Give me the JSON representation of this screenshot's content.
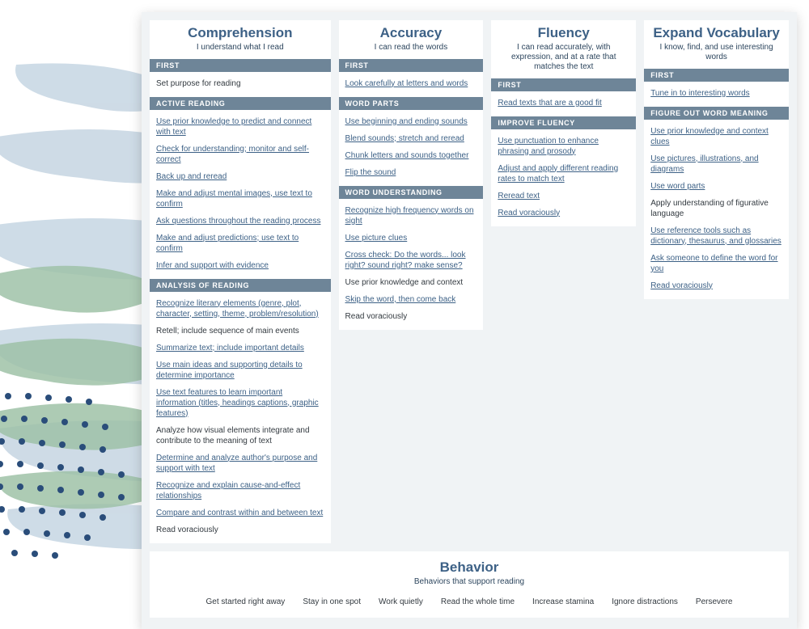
{
  "colors": {
    "panel_bg": "#f0f3f5",
    "card_bg": "#ffffff",
    "title": "#3d6186",
    "section_bg": "#6e8598",
    "link": "#3d6186",
    "plain_text": "#333a40",
    "brush_blue": "#c9d8e4",
    "brush_green": "#9fc2a8",
    "dot_blue": "#2a4d7a"
  },
  "columns": [
    {
      "title": "Comprehension",
      "subtitle": "I understand what I read",
      "sections": [
        {
          "name": "FIRST",
          "items": [
            {
              "text": "Set purpose for reading",
              "link": false
            }
          ]
        },
        {
          "name": "ACTIVE READING",
          "items": [
            {
              "text": "Use prior knowledge to predict and connect with text",
              "link": true
            },
            {
              "text": "Check for understanding; monitor and self-correct",
              "link": true
            },
            {
              "text": "Back up and reread",
              "link": true
            },
            {
              "text": "Make and adjust mental images, use text to confirm",
              "link": true
            },
            {
              "text": "Ask questions throughout the reading process",
              "link": true
            },
            {
              "text": "Make and adjust predictions; use text to confirm",
              "link": true
            },
            {
              "text": "Infer and support with evidence",
              "link": true
            }
          ]
        },
        {
          "name": "ANALYSIS OF READING",
          "items": [
            {
              "text": "Recognize literary elements (genre, plot, character, setting, theme, problem/resolution)",
              "link": true
            },
            {
              "text": "Retell; include sequence of main events",
              "link": false
            },
            {
              "text": "Summarize text; include important details",
              "link": true
            },
            {
              "text": "Use main ideas and supporting details to determine importance",
              "link": true
            },
            {
              "text": "Use text features to learn important information (titles, headings captions, graphic features)",
              "link": true
            },
            {
              "text": "Analyze how visual elements integrate and contribute to the meaning of text",
              "link": false
            },
            {
              "text": "Determine and analyze author's purpose and support with text",
              "link": true
            },
            {
              "text": "Recognize and explain cause-and-effect relationships",
              "link": true
            },
            {
              "text": "Compare and contrast within and between text",
              "link": true
            },
            {
              "text": "Read voraciously",
              "link": false
            }
          ]
        }
      ]
    },
    {
      "title": "Accuracy",
      "subtitle": "I can read the words",
      "sections": [
        {
          "name": "FIRST",
          "items": [
            {
              "text": "Look carefully at letters and words",
              "link": true
            }
          ]
        },
        {
          "name": "WORD PARTS",
          "items": [
            {
              "text": "Use beginning and ending sounds",
              "link": true
            },
            {
              "text": "Blend sounds; stretch and reread",
              "link": true
            },
            {
              "text": "Chunk letters and sounds together",
              "link": true
            },
            {
              "text": "Flip the sound",
              "link": true
            }
          ]
        },
        {
          "name": "WORD UNDERSTANDING",
          "items": [
            {
              "text": "Recognize high frequency words on sight",
              "link": true
            },
            {
              "text": "Use picture clues",
              "link": true
            },
            {
              "text": "Cross check: Do the words... look right? sound right? make sense?",
              "link": true
            },
            {
              "text": "Use prior knowledge and context",
              "link": false
            },
            {
              "text": "Skip the word, then come back",
              "link": true
            },
            {
              "text": "Read voraciously",
              "link": false
            }
          ]
        }
      ]
    },
    {
      "title": "Fluency",
      "subtitle": "I can read accurately, with expression, and at a rate that matches the text",
      "sections": [
        {
          "name": "FIRST",
          "items": [
            {
              "text": "Read texts that are a good fit",
              "link": true
            }
          ]
        },
        {
          "name": "IMPROVE FLUENCY",
          "items": [
            {
              "text": "Use punctuation to enhance phrasing and prosody",
              "link": true
            },
            {
              "text": "Adjust and apply different reading rates to match text",
              "link": true
            },
            {
              "text": "Reread text",
              "link": true
            },
            {
              "text": "Read voraciously",
              "link": true
            }
          ]
        }
      ]
    },
    {
      "title": "Expand Vocabulary",
      "subtitle": "I know, find, and use interesting words",
      "sections": [
        {
          "name": "FIRST",
          "items": [
            {
              "text": "Tune in to interesting words",
              "link": true
            }
          ]
        },
        {
          "name": "FIGURE OUT WORD MEANING",
          "items": [
            {
              "text": "Use prior knowledge and context clues",
              "link": true
            },
            {
              "text": "Use pictures, illustrations, and diagrams",
              "link": true
            },
            {
              "text": "Use word parts",
              "link": true
            },
            {
              "text": "Apply understanding of figurative language",
              "link": false
            },
            {
              "text": "Use reference tools such as dictionary, thesaurus, and glossaries",
              "link": true
            },
            {
              "text": "Ask someone to define the word for you",
              "link": true
            },
            {
              "text": "Read voraciously",
              "link": true
            }
          ]
        }
      ]
    }
  ],
  "behavior": {
    "title": "Behavior",
    "subtitle": "Behaviors that support reading",
    "items": [
      "Get started right away",
      "Stay in one spot",
      "Work quietly",
      "Read the whole time",
      "Increase stamina",
      "Ignore distractions",
      "Persevere"
    ]
  }
}
